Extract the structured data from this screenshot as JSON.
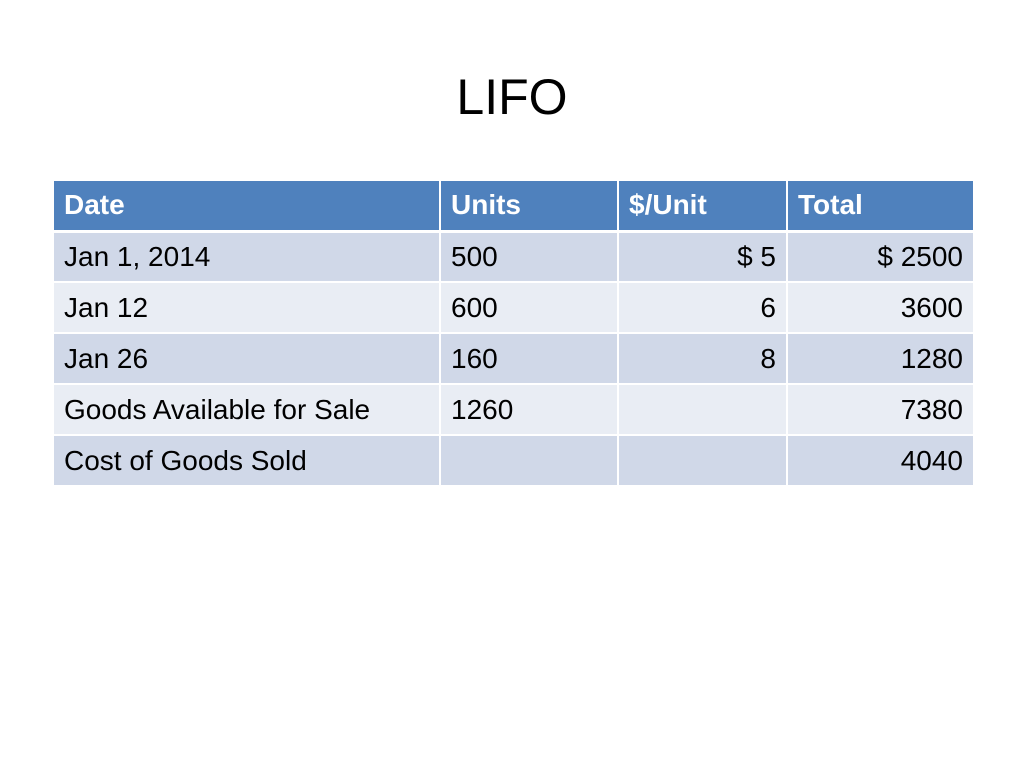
{
  "slide": {
    "title": "LIFO"
  },
  "table": {
    "headers": [
      "Date",
      "Units",
      "$/Unit",
      "Total"
    ],
    "rows": [
      [
        "Jan 1, 2014",
        "500",
        "$ 5",
        "$ 2500"
      ],
      [
        "Jan 12",
        "600",
        "6",
        "3600"
      ],
      [
        "Jan 26",
        "160",
        "8",
        "1280"
      ],
      [
        "Goods Available for Sale",
        "1260",
        "",
        "7380"
      ],
      [
        "Cost of Goods Sold",
        "",
        "",
        "4040"
      ]
    ]
  },
  "colors": {
    "header_bg": "#4f81bd",
    "row_odd_bg": "#d0d8e8",
    "row_even_bg": "#e9edf4"
  }
}
